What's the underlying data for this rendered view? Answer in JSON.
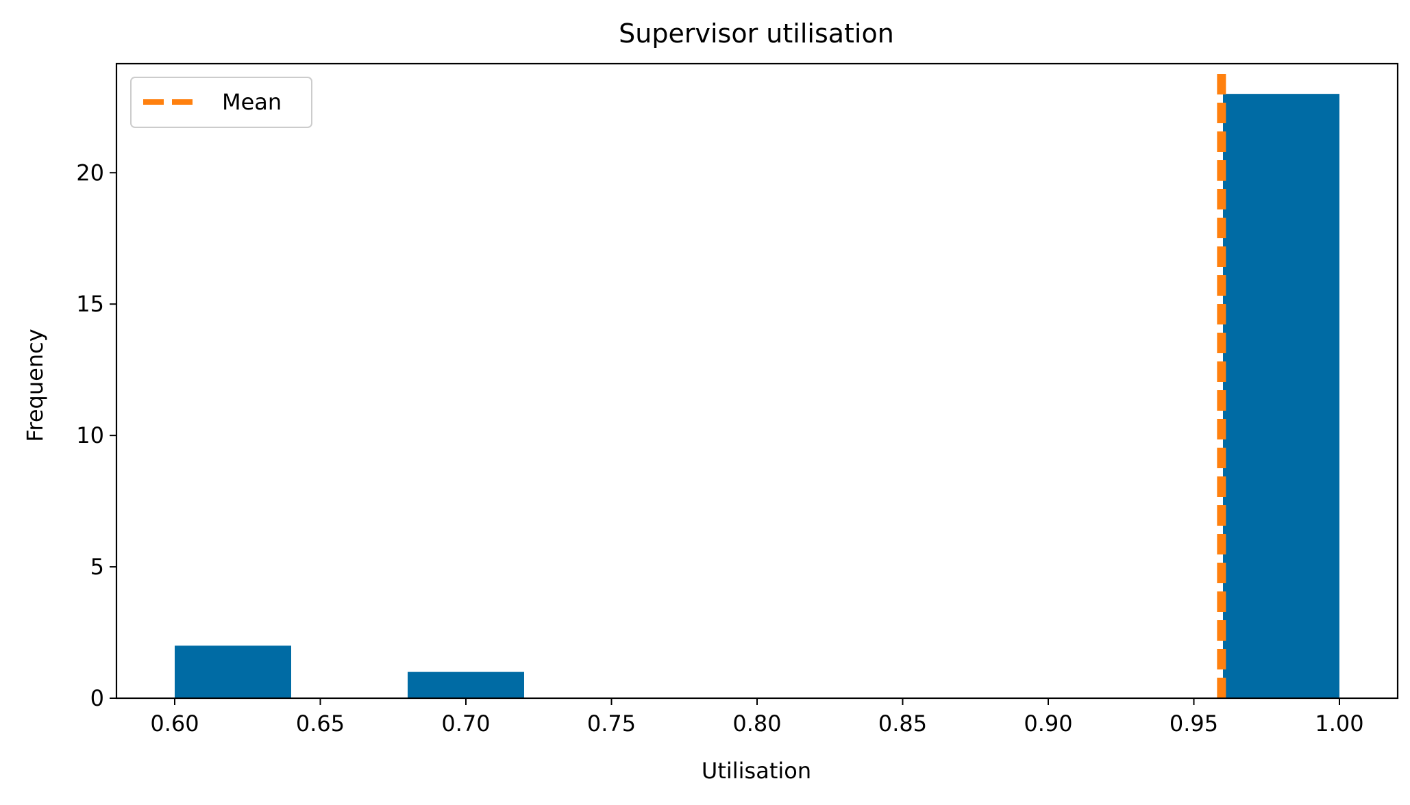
{
  "chart_data": {
    "type": "bar",
    "title": "Supervisor utilisation",
    "xlabel": "Utilisation",
    "ylabel": "Frequency",
    "xlim": [
      0.58,
      1.02
    ],
    "ylim": [
      0,
      24.15
    ],
    "xticks": [
      0.6,
      0.65,
      0.7,
      0.75,
      0.8,
      0.85,
      0.9,
      0.95,
      1.0
    ],
    "xtick_labels": [
      "0.60",
      "0.65",
      "0.70",
      "0.75",
      "0.80",
      "0.85",
      "0.90",
      "0.95",
      "1.00"
    ],
    "yticks": [
      0,
      5,
      10,
      15,
      20
    ],
    "ytick_labels": [
      "0",
      "5",
      "10",
      "15",
      "20"
    ],
    "bins": [
      {
        "x0": 0.6,
        "x1": 0.64,
        "count": 2
      },
      {
        "x0": 0.68,
        "x1": 0.72,
        "count": 1
      },
      {
        "x0": 0.96,
        "x1": 1.0,
        "count": 23
      }
    ],
    "bar_color": "#006BA4",
    "mean_line": {
      "label": "Mean",
      "value": 0.9595,
      "color": "#FF800E",
      "style": "dashed"
    },
    "legend": {
      "placement": "top-left",
      "entries": [
        "Mean"
      ]
    },
    "grid": false
  }
}
